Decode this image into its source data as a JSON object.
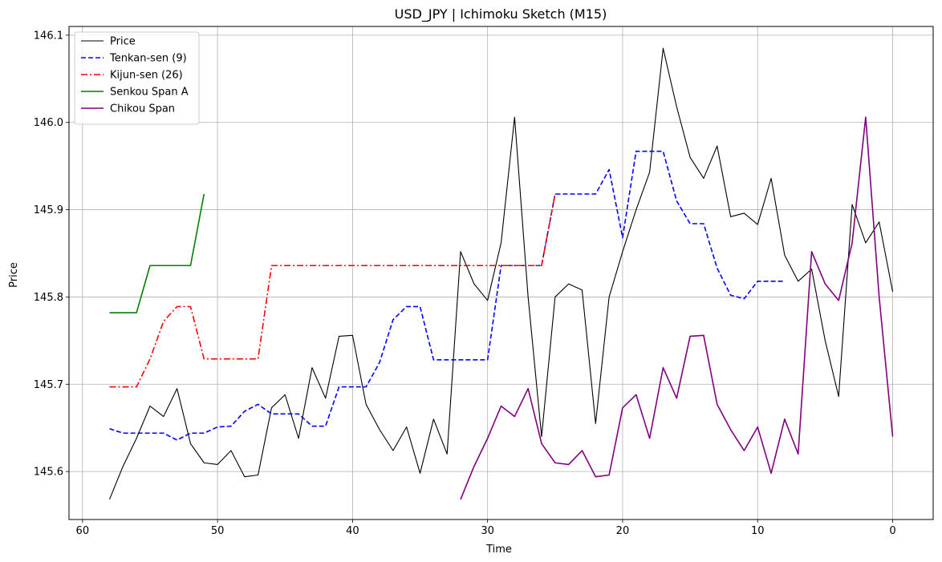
{
  "chart_data": {
    "type": "line",
    "title": "USD_JPY | Ichimoku Sketch (M15)",
    "xlabel": "Time",
    "ylabel": "Price",
    "xlim": [
      61,
      -3
    ],
    "ylim": [
      145.545,
      146.11
    ],
    "x_ticks": [
      60,
      50,
      40,
      30,
      20,
      10,
      0
    ],
    "y_ticks": [
      145.6,
      145.7,
      145.8,
      145.9,
      146.0,
      146.1
    ],
    "grid": true,
    "legend_position": "top-left",
    "series": [
      {
        "name": "Price",
        "color": "#000000",
        "style": "solid",
        "points": [
          [
            58,
            145.568
          ],
          [
            57,
            145.606
          ],
          [
            56,
            145.638
          ],
          [
            55,
            145.675
          ],
          [
            54,
            145.663
          ],
          [
            53,
            145.695
          ],
          [
            52,
            145.632
          ],
          [
            51,
            145.61
          ],
          [
            50,
            145.608
          ],
          [
            49,
            145.624
          ],
          [
            48,
            145.594
          ],
          [
            47,
            145.596
          ],
          [
            46,
            145.673
          ],
          [
            45,
            145.688
          ],
          [
            44,
            145.638
          ],
          [
            43,
            145.719
          ],
          [
            42,
            145.684
          ],
          [
            41,
            145.755
          ],
          [
            40,
            145.756
          ],
          [
            39,
            145.677
          ],
          [
            38,
            145.648
          ],
          [
            37,
            145.624
          ],
          [
            36,
            145.651
          ],
          [
            35,
            145.598
          ],
          [
            34,
            145.66
          ],
          [
            33,
            145.62
          ],
          [
            32,
            145.852
          ],
          [
            31,
            145.815
          ],
          [
            30,
            145.796
          ],
          [
            29,
            145.862
          ],
          [
            28,
            146.006
          ],
          [
            27,
            145.8
          ],
          [
            26,
            145.64
          ],
          [
            25,
            145.8
          ],
          [
            24,
            145.815
          ],
          [
            23,
            145.808
          ],
          [
            22,
            145.655
          ],
          [
            21,
            145.8
          ],
          [
            20,
            145.852
          ],
          [
            19,
            145.9
          ],
          [
            18,
            145.943
          ],
          [
            17,
            146.085
          ],
          [
            16,
            146.018
          ],
          [
            15,
            145.96
          ],
          [
            14,
            145.936
          ],
          [
            13,
            145.973
          ],
          [
            12,
            145.892
          ],
          [
            11,
            145.896
          ],
          [
            10,
            145.883
          ],
          [
            9,
            145.936
          ],
          [
            8,
            145.848
          ],
          [
            7,
            145.818
          ],
          [
            6,
            145.832
          ],
          [
            5,
            145.75
          ],
          [
            4,
            145.686
          ],
          [
            3,
            145.906
          ],
          [
            2,
            145.862
          ],
          [
            1,
            145.886
          ],
          [
            0,
            145.806
          ]
        ]
      },
      {
        "name": "Tenkan-sen (9)",
        "color": "#0000ff",
        "style": "dashed",
        "points": [
          [
            58,
            145.649
          ],
          [
            57,
            145.644
          ],
          [
            56,
            145.644
          ],
          [
            55,
            145.644
          ],
          [
            54,
            145.644
          ],
          [
            53,
            145.636
          ],
          [
            52,
            145.644
          ],
          [
            51,
            145.644
          ],
          [
            50,
            145.651
          ],
          [
            49,
            145.652
          ],
          [
            48,
            145.669
          ],
          [
            47,
            145.677
          ],
          [
            46,
            145.666
          ],
          [
            45,
            145.666
          ],
          [
            44,
            145.666
          ],
          [
            43,
            145.652
          ],
          [
            42,
            145.652
          ],
          [
            41,
            145.697
          ],
          [
            40,
            145.697
          ],
          [
            39,
            145.697
          ],
          [
            38,
            145.725
          ],
          [
            37,
            145.774
          ],
          [
            36,
            145.789
          ],
          [
            35,
            145.789
          ],
          [
            34,
            145.728
          ],
          [
            33,
            145.728
          ],
          [
            32,
            145.728
          ],
          [
            31,
            145.728
          ],
          [
            30,
            145.728
          ],
          [
            29,
            145.836
          ],
          [
            28,
            145.836
          ],
          [
            27,
            145.836
          ],
          [
            26,
            145.836
          ],
          [
            25,
            145.918
          ],
          [
            24,
            145.918
          ],
          [
            23,
            145.918
          ],
          [
            22,
            145.918
          ],
          [
            21,
            145.946
          ],
          [
            20,
            145.868
          ],
          [
            19,
            145.967
          ],
          [
            18,
            145.967
          ],
          [
            17,
            145.967
          ],
          [
            16,
            145.91
          ],
          [
            15,
            145.884
          ],
          [
            14,
            145.884
          ],
          [
            13,
            145.833
          ],
          [
            12,
            145.802
          ],
          [
            11,
            145.798
          ],
          [
            10,
            145.818
          ],
          [
            9,
            145.818
          ],
          [
            8,
            145.818
          ]
        ]
      },
      {
        "name": "Kijun-sen (26)",
        "color": "#ff0000",
        "style": "dashdot",
        "points": [
          [
            58,
            145.697
          ],
          [
            57,
            145.697
          ],
          [
            56,
            145.697
          ],
          [
            55,
            145.729
          ],
          [
            54,
            145.772
          ],
          [
            53,
            145.789
          ],
          [
            52,
            145.789
          ],
          [
            51,
            145.729
          ],
          [
            50,
            145.729
          ],
          [
            49,
            145.729
          ],
          [
            48,
            145.729
          ],
          [
            47,
            145.729
          ],
          [
            46,
            145.836
          ],
          [
            45,
            145.836
          ],
          [
            44,
            145.836
          ],
          [
            43,
            145.836
          ],
          [
            42,
            145.836
          ],
          [
            41,
            145.836
          ],
          [
            40,
            145.836
          ],
          [
            39,
            145.836
          ],
          [
            38,
            145.836
          ],
          [
            37,
            145.836
          ],
          [
            36,
            145.836
          ],
          [
            35,
            145.836
          ],
          [
            34,
            145.836
          ],
          [
            33,
            145.836
          ],
          [
            32,
            145.836
          ],
          [
            31,
            145.836
          ],
          [
            30,
            145.836
          ],
          [
            29,
            145.836
          ],
          [
            28,
            145.836
          ],
          [
            27,
            145.836
          ],
          [
            26,
            145.836
          ],
          [
            25,
            145.918
          ]
        ]
      },
      {
        "name": "Senkou Span A",
        "color": "#008000",
        "style": "solid",
        "points": [
          [
            58,
            145.782
          ],
          [
            57,
            145.782
          ],
          [
            56,
            145.782
          ],
          [
            55,
            145.836
          ],
          [
            54,
            145.836
          ],
          [
            53,
            145.836
          ],
          [
            52,
            145.836
          ],
          [
            51,
            145.918
          ]
        ]
      },
      {
        "name": "Chikou Span",
        "color": "#800080",
        "style": "solid",
        "points": [
          [
            32,
            145.568
          ],
          [
            31,
            145.606
          ],
          [
            30,
            145.638
          ],
          [
            29,
            145.675
          ],
          [
            28,
            145.663
          ],
          [
            27,
            145.695
          ],
          [
            26,
            145.632
          ],
          [
            25,
            145.61
          ],
          [
            24,
            145.608
          ],
          [
            23,
            145.624
          ],
          [
            22,
            145.594
          ],
          [
            21,
            145.596
          ],
          [
            20,
            145.673
          ],
          [
            19,
            145.688
          ],
          [
            18,
            145.638
          ],
          [
            17,
            145.719
          ],
          [
            16,
            145.684
          ],
          [
            15,
            145.755
          ],
          [
            14,
            145.756
          ],
          [
            13,
            145.677
          ],
          [
            12,
            145.648
          ],
          [
            11,
            145.624
          ],
          [
            10,
            145.651
          ],
          [
            9,
            145.598
          ],
          [
            8,
            145.66
          ],
          [
            7,
            145.62
          ],
          [
            6,
            145.852
          ],
          [
            5,
            145.815
          ],
          [
            4,
            145.796
          ],
          [
            3,
            145.862
          ],
          [
            2,
            146.006
          ],
          [
            1,
            145.8
          ],
          [
            0,
            145.64
          ]
        ]
      }
    ]
  }
}
